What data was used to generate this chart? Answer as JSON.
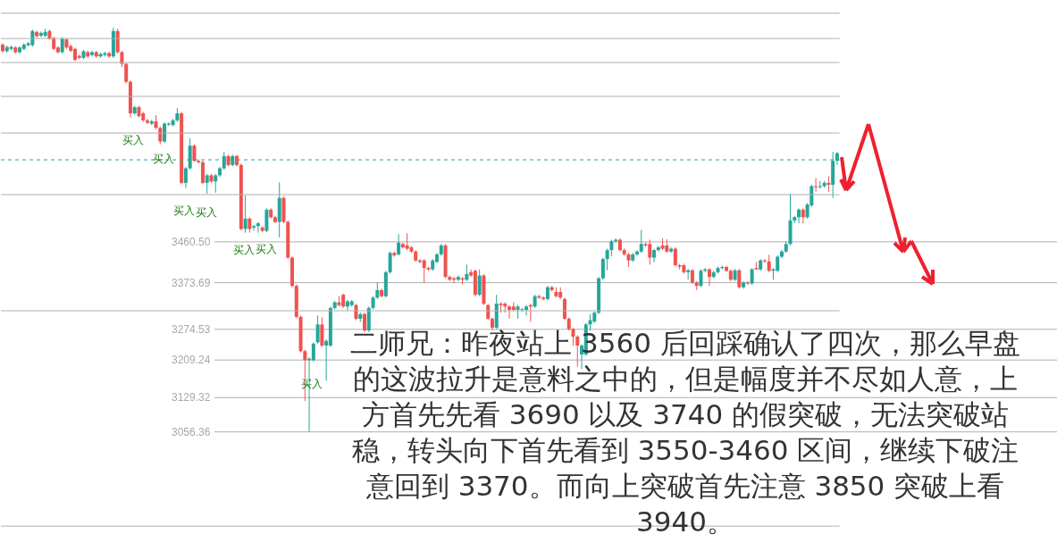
{
  "chart_data": {
    "type": "candlestick",
    "tick_labels": "y",
    "grid": "y",
    "ylim": [
      2786,
      3975
    ],
    "yticks": [
      {
        "value": 3460.5,
        "label": "3460.50"
      },
      3373.69,
      3274.53,
      3209.24,
      3129.32,
      3056.36
    ],
    "categories": [
      null,
      null,
      null,
      null,
      null,
      null,
      null,
      null,
      null,
      null,
      null,
      null,
      null,
      null,
      null,
      null,
      null,
      null,
      null,
      null,
      null,
      null,
      null,
      null,
      null,
      null,
      null,
      null,
      null,
      null,
      null,
      null,
      null,
      null,
      null,
      null,
      null,
      null,
      null,
      null,
      null,
      null,
      null,
      null,
      null,
      null,
      null,
      null,
      null,
      null,
      null,
      null,
      null,
      null,
      null,
      null,
      null,
      null,
      null,
      null,
      null,
      null,
      null,
      null,
      null,
      null,
      null,
      null,
      null,
      null,
      null,
      null,
      null,
      null,
      null,
      null,
      null,
      null,
      null,
      null,
      null,
      null,
      null,
      null,
      null,
      null,
      null,
      null,
      null,
      null,
      null,
      null,
      null,
      null,
      null,
      null,
      null,
      null,
      null,
      null,
      null,
      null,
      null,
      null,
      null,
      null,
      null,
      null,
      null,
      null,
      null,
      null,
      null,
      null,
      null,
      null,
      null,
      null,
      null,
      null,
      null,
      null,
      null,
      null,
      null,
      null,
      null,
      null,
      null,
      null,
      null,
      null,
      null,
      null,
      null,
      null,
      null,
      null,
      null,
      null,
      null,
      null,
      null,
      null,
      null,
      null,
      null,
      null,
      null,
      null,
      null,
      null,
      null,
      null,
      null,
      null,
      null,
      null,
      null,
      null,
      null,
      null,
      null,
      null,
      null,
      null,
      null,
      null,
      null,
      null,
      null,
      null,
      null,
      null,
      null,
      null,
      null,
      null,
      null,
      null,
      null,
      null,
      null,
      null,
      null,
      null,
      null,
      null,
      null,
      null,
      null,
      null,
      null,
      null,
      null,
      null,
      null
    ],
    "ohlc": [
      [
        3880,
        3883,
        3863,
        3866
      ],
      [
        3866,
        3878,
        3863,
        3875
      ],
      [
        3871,
        3878,
        3868,
        3875
      ],
      [
        3874,
        3877,
        3861,
        3864
      ],
      [
        3864,
        3877,
        3861,
        3874
      ],
      [
        3871,
        3883,
        3868,
        3880
      ],
      [
        3879,
        3886,
        3876,
        3883
      ],
      [
        3879,
        3912,
        3876,
        3909
      ],
      [
        3907,
        3910,
        3895,
        3898
      ],
      [
        3899,
        3908,
        3896,
        3905
      ],
      [
        3899,
        3914,
        3896,
        3907
      ],
      [
        3909,
        3912,
        3890,
        3893
      ],
      [
        3894,
        3897,
        3868,
        3871
      ],
      [
        3874,
        3877,
        3861,
        3864
      ],
      [
        3864,
        3896,
        3861,
        3893
      ],
      [
        3891,
        3894,
        3871,
        3874
      ],
      [
        3877,
        3880,
        3864,
        3867
      ],
      [
        3871,
        3874,
        3845,
        3848
      ],
      [
        3856,
        3859,
        3849,
        3852
      ],
      [
        3852,
        3869,
        3849,
        3866
      ],
      [
        3864,
        3867,
        3852,
        3855
      ],
      [
        3858,
        3867,
        3855,
        3864
      ],
      [
        3864,
        3867,
        3852,
        3855
      ],
      [
        3855,
        3863,
        3852,
        3860
      ],
      [
        3858,
        3865,
        3855,
        3862
      ],
      [
        3862,
        3865,
        3852,
        3855
      ],
      [
        3855,
        3916,
        3852,
        3909
      ],
      [
        3909,
        3914,
        3861,
        3864
      ],
      [
        3864,
        3867,
        3832,
        3839
      ],
      [
        3839,
        3842,
        3798,
        3801
      ],
      [
        3801,
        3804,
        3725,
        3734
      ],
      [
        3734,
        3750,
        3731,
        3747
      ],
      [
        3747,
        3750,
        3725,
        3728
      ],
      [
        3734,
        3737,
        3716,
        3719
      ],
      [
        3719,
        3722,
        3711,
        3714
      ],
      [
        3712,
        3720,
        3709,
        3717
      ],
      [
        3717,
        3730,
        3700,
        3703
      ],
      [
        3703,
        3706,
        3668,
        3674
      ],
      [
        3674,
        3715,
        3671,
        3712
      ],
      [
        3710,
        3715,
        3707,
        3712
      ],
      [
        3709,
        3722,
        3706,
        3719
      ],
      [
        3719,
        3745,
        3716,
        3734
      ],
      [
        3734,
        3737,
        3583,
        3586
      ],
      [
        3586,
        3620,
        3575,
        3617
      ],
      [
        3617,
        3681,
        3614,
        3665
      ],
      [
        3665,
        3668,
        3630,
        3633
      ],
      [
        3633,
        3636,
        3627,
        3630
      ],
      [
        3630,
        3633,
        3583,
        3586
      ],
      [
        3586,
        3605,
        3563,
        3602
      ],
      [
        3602,
        3605,
        3586,
        3589
      ],
      [
        3589,
        3605,
        3565,
        3602
      ],
      [
        3602,
        3620,
        3599,
        3617
      ],
      [
        3617,
        3652,
        3614,
        3643
      ],
      [
        3643,
        3646,
        3621,
        3624
      ],
      [
        3624,
        3646,
        3621,
        3643
      ],
      [
        3643,
        3646,
        3621,
        3624
      ],
      [
        3624,
        3627,
        3485,
        3488
      ],
      [
        3488,
        3559,
        3480,
        3510
      ],
      [
        3510,
        3513,
        3480,
        3488
      ],
      [
        3491,
        3497,
        3484,
        3494
      ],
      [
        3494,
        3503,
        3480,
        3500
      ],
      [
        3491,
        3494,
        3481,
        3484
      ],
      [
        3484,
        3532,
        3481,
        3529
      ],
      [
        3529,
        3532,
        3510,
        3513
      ],
      [
        3513,
        3516,
        3500,
        3503
      ],
      [
        3503,
        3587,
        3470,
        3554
      ],
      [
        3554,
        3557,
        3500,
        3503
      ],
      [
        3503,
        3506,
        3424,
        3427
      ],
      [
        3427,
        3430,
        3364,
        3367
      ],
      [
        3367,
        3370,
        3298,
        3301
      ],
      [
        3301,
        3304,
        3225,
        3228
      ],
      [
        3228,
        3231,
        3122,
        3209
      ],
      [
        3209,
        3215,
        3056.36,
        3212
      ],
      [
        3209,
        3247,
        3206,
        3244
      ],
      [
        3247,
        3304,
        3244,
        3285
      ],
      [
        3285,
        3300,
        3237,
        3240
      ],
      [
        3240,
        3253,
        3165,
        3250
      ],
      [
        3240,
        3323,
        3237,
        3320
      ],
      [
        3320,
        3335,
        3317,
        3332
      ],
      [
        3332,
        3345,
        3323,
        3326
      ],
      [
        3348,
        3351,
        3320,
        3323
      ],
      [
        3323,
        3337,
        3315,
        3334
      ],
      [
        3326,
        3337,
        3323,
        3334
      ],
      [
        3326,
        3329,
        3294,
        3297
      ],
      [
        3297,
        3310,
        3290,
        3307
      ],
      [
        3307,
        3310,
        3269,
        3272
      ],
      [
        3272,
        3323,
        3269,
        3320
      ],
      [
        3320,
        3345,
        3317,
        3342
      ],
      [
        3342,
        3374,
        3339,
        3358
      ],
      [
        3358,
        3361,
        3342,
        3345
      ],
      [
        3345,
        3399,
        3342,
        3396
      ],
      [
        3396,
        3440,
        3393,
        3437
      ],
      [
        3437,
        3440,
        3429,
        3432
      ],
      [
        3434,
        3477,
        3431,
        3459
      ],
      [
        3456,
        3459,
        3446,
        3449
      ],
      [
        3453,
        3479,
        3443,
        3446
      ],
      [
        3449,
        3452,
        3437,
        3440
      ],
      [
        3440,
        3443,
        3418,
        3421
      ],
      [
        3421,
        3424,
        3415,
        3418
      ],
      [
        3421,
        3424,
        3373,
        3405
      ],
      [
        3405,
        3408,
        3399,
        3402
      ],
      [
        3402,
        3424,
        3399,
        3421
      ],
      [
        3418,
        3437,
        3415,
        3434
      ],
      [
        3434,
        3456,
        3431,
        3453
      ],
      [
        3453,
        3456,
        3383,
        3386
      ],
      [
        3386,
        3389,
        3377,
        3380
      ],
      [
        3383,
        3386,
        3373,
        3380
      ],
      [
        3380,
        3389,
        3377,
        3386
      ],
      [
        3383,
        3386,
        3370,
        3380
      ],
      [
        3380,
        3412,
        3377,
        3392
      ],
      [
        3396,
        3402,
        3386,
        3389
      ],
      [
        3399,
        3402,
        3345,
        3348
      ],
      [
        3348,
        3402,
        3345,
        3389
      ],
      [
        3389,
        3392,
        3326,
        3329
      ],
      [
        3326,
        3329,
        3294,
        3297
      ],
      [
        3297,
        3300,
        3272,
        3278
      ],
      [
        3278,
        3348,
        3275,
        3329
      ],
      [
        3329,
        3332,
        3310,
        3326
      ],
      [
        3329,
        3332,
        3310,
        3323
      ],
      [
        3323,
        3326,
        3297,
        3316
      ],
      [
        3323,
        3332,
        3313,
        3316
      ],
      [
        3316,
        3326,
        3297,
        3323
      ],
      [
        3316,
        3320,
        3313,
        3317
      ],
      [
        3316,
        3326,
        3304,
        3323
      ],
      [
        3326,
        3329,
        3290,
        3323
      ],
      [
        3323,
        3348,
        3320,
        3345
      ],
      [
        3345,
        3348,
        3339,
        3342
      ],
      [
        3342,
        3345,
        3336,
        3339
      ],
      [
        3339,
        3367,
        3336,
        3364
      ],
      [
        3364,
        3367,
        3355,
        3358
      ],
      [
        3354,
        3364,
        3342,
        3345
      ],
      [
        3354,
        3364,
        3339,
        3342
      ],
      [
        3339,
        3342,
        3294,
        3297
      ],
      [
        3297,
        3300,
        3272,
        3275
      ],
      [
        3275,
        3278,
        3240,
        3259
      ],
      [
        3259,
        3262,
        3195,
        3240
      ],
      [
        3221,
        3243,
        3190,
        3240
      ],
      [
        3221,
        3288,
        3218,
        3285
      ],
      [
        3285,
        3307,
        3272,
        3294
      ],
      [
        3291,
        3313,
        3288,
        3310
      ],
      [
        3310,
        3386,
        3307,
        3383
      ],
      [
        3383,
        3427,
        3380,
        3424
      ],
      [
        3424,
        3446,
        3400,
        3443
      ],
      [
        3443,
        3465,
        3430,
        3462
      ],
      [
        3462,
        3468,
        3459,
        3465
      ],
      [
        3465,
        3468,
        3440,
        3443
      ],
      [
        3443,
        3446,
        3431,
        3434
      ],
      [
        3434,
        3437,
        3407,
        3421
      ],
      [
        3421,
        3437,
        3418,
        3434
      ],
      [
        3434,
        3443,
        3431,
        3440
      ],
      [
        3440,
        3486,
        3437,
        3456
      ],
      [
        3456,
        3459,
        3450,
        3453
      ],
      [
        3456,
        3465,
        3412,
        3427
      ],
      [
        3427,
        3446,
        3417,
        3443
      ],
      [
        3443,
        3452,
        3440,
        3449
      ],
      [
        3453,
        3468,
        3443,
        3446
      ],
      [
        3453,
        3466,
        3437,
        3440
      ],
      [
        3440,
        3449,
        3437,
        3446
      ],
      [
        3446,
        3449,
        3408,
        3411
      ],
      [
        3411,
        3414,
        3402,
        3408
      ],
      [
        3411,
        3414,
        3393,
        3396
      ],
      [
        3396,
        3403,
        3380,
        3400
      ],
      [
        3400,
        3403,
        3371,
        3374
      ],
      [
        3374,
        3377,
        3358,
        3367
      ],
      [
        3367,
        3402,
        3364,
        3399
      ],
      [
        3399,
        3405,
        3396,
        3402
      ],
      [
        3402,
        3405,
        3367,
        3386
      ],
      [
        3386,
        3399,
        3383,
        3396
      ],
      [
        3396,
        3408,
        3393,
        3405
      ],
      [
        3405,
        3410,
        3402,
        3407
      ],
      [
        3407,
        3410,
        3396,
        3399
      ],
      [
        3399,
        3402,
        3377,
        3380
      ],
      [
        3380,
        3403,
        3377,
        3400
      ],
      [
        3400,
        3403,
        3361,
        3364
      ],
      [
        3364,
        3377,
        3361,
        3374
      ],
      [
        3374,
        3377,
        3369,
        3372
      ],
      [
        3372,
        3405,
        3369,
        3402
      ],
      [
        3405,
        3418,
        3402,
        3402
      ],
      [
        3402,
        3424,
        3399,
        3421
      ],
      [
        3421,
        3424,
        3416,
        3419
      ],
      [
        3419,
        3433,
        3396,
        3399
      ],
      [
        3399,
        3405,
        3380,
        3402
      ],
      [
        3399,
        3432,
        3396,
        3429
      ],
      [
        3429,
        3443,
        3426,
        3440
      ],
      [
        3440,
        3462,
        3437,
        3456
      ],
      [
        3456,
        3563,
        3453,
        3506
      ],
      [
        3506,
        3516,
        3500,
        3513
      ],
      [
        3513,
        3532,
        3500,
        3529
      ],
      [
        3529,
        3532,
        3500,
        3513
      ],
      [
        3513,
        3543,
        3510,
        3540
      ],
      [
        3538,
        3582,
        3535,
        3579
      ],
      [
        3579,
        3596,
        3567,
        3577
      ],
      [
        3577,
        3590,
        3574,
        3579
      ],
      [
        3579,
        3590,
        3576,
        3586
      ],
      [
        3586,
        3600,
        3567,
        3582
      ],
      [
        3582,
        3652,
        3554,
        3633
      ],
      [
        3633,
        3652,
        3625,
        3649
      ]
    ],
    "ref_lines": [
      {
        "axis": "y",
        "value": 3947,
        "color": "#b0b0b0"
      },
      {
        "axis": "y",
        "value": 3893,
        "color": "#b0b0b0"
      },
      {
        "axis": "y",
        "value": 3842,
        "color": "#b0b0b0"
      },
      {
        "axis": "y",
        "value": 3770,
        "color": "#b0b0b0"
      },
      {
        "axis": "y",
        "value": 3692,
        "color": "#b0b0b0"
      },
      {
        "axis": "y",
        "value": 3635,
        "color": "#26a69a",
        "line_style": "dashed"
      },
      {
        "axis": "y",
        "value": 3561,
        "color": "#b0b0b0"
      },
      {
        "axis": "y",
        "value": 3314,
        "color": "#b0b0b0"
      },
      {
        "axis": "y",
        "value": 2856,
        "color": "#b0b0b0"
      }
    ],
    "annotations": [
      "二师兄：昨夜站上 3560 后回踩确认了四次，那么早盘的这波拉升是意料之中的，但是幅度并不尽如人意，上方首先先看 3690 以及 3740 的假突破，无法突破站稳，转头向下首先看到 3550-3460 区间，继续下破注意回到 3370。而向上突破首先注意 3850 突破上看 3940。",
      "买入",
      "买入",
      "买入",
      "买入",
      "买入",
      "买入",
      "买入"
    ]
  }
}
